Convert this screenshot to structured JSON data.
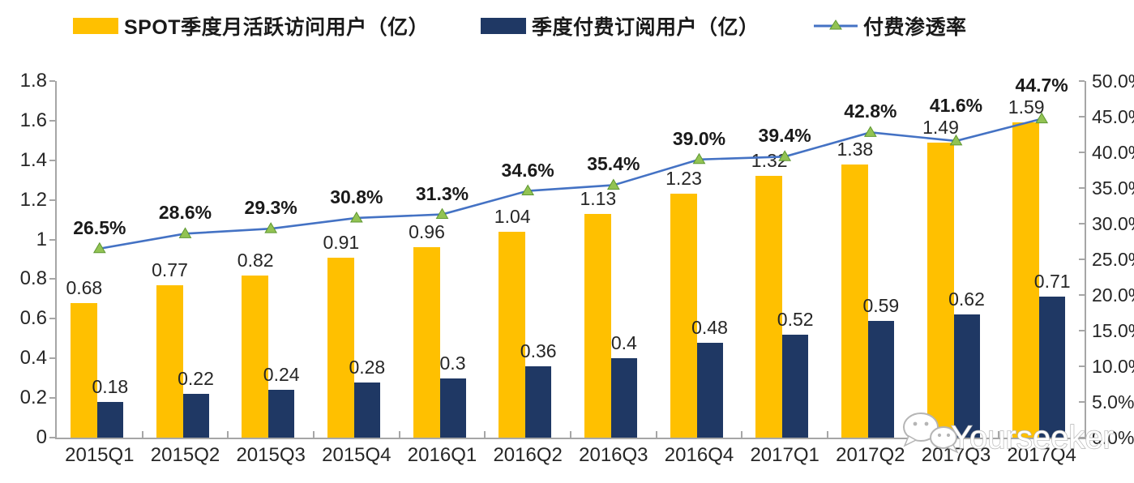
{
  "legend": [
    {
      "label": "SPOT季度月活跃访问用户（亿）",
      "color": "#FFC000",
      "type": "bar"
    },
    {
      "label": "季度付费订阅用户（亿）",
      "color": "#1F3864",
      "type": "bar"
    },
    {
      "label": "付费渗透率",
      "color": "#4472C4",
      "marker_color": "#92C353",
      "type": "line"
    }
  ],
  "chart_data": {
    "type": "bar+line combo",
    "categories": [
      "2015Q1",
      "2015Q2",
      "2015Q3",
      "2015Q4",
      "2016Q1",
      "2016Q2",
      "2016Q3",
      "2016Q4",
      "2017Q1",
      "2017Q2",
      "2017Q3",
      "2017Q4"
    ],
    "series": [
      {
        "name": "SPOT季度月活跃访问用户（亿）",
        "type": "bar",
        "axis": "left",
        "color": "#FFC000",
        "values": [
          0.68,
          0.77,
          0.82,
          0.91,
          0.96,
          1.04,
          1.13,
          1.23,
          1.32,
          1.38,
          1.49,
          1.59
        ],
        "labels": [
          "0.68",
          "0.77",
          "0.82",
          "0.91",
          "0.96",
          "1.04",
          "1.13",
          "1.23",
          "1.32",
          "1.38",
          "1.49",
          "1.59"
        ]
      },
      {
        "name": "季度付费订阅用户（亿）",
        "type": "bar",
        "axis": "left",
        "color": "#1F3864",
        "values": [
          0.18,
          0.22,
          0.24,
          0.28,
          0.3,
          0.36,
          0.4,
          0.48,
          0.52,
          0.59,
          0.62,
          0.71
        ],
        "labels": [
          "0.18",
          "0.22",
          "0.24",
          "0.28",
          "0.3",
          "0.36",
          "0.4",
          "0.48",
          "0.52",
          "0.59",
          "0.62",
          "0.71"
        ]
      },
      {
        "name": "付费渗透率",
        "type": "line",
        "axis": "right",
        "color": "#4472C4",
        "marker": "triangle",
        "marker_fill": "#92C353",
        "marker_stroke": "#5E9732",
        "values": [
          26.5,
          28.6,
          29.3,
          30.8,
          31.3,
          34.6,
          35.4,
          39.0,
          39.4,
          42.8,
          41.6,
          44.7
        ],
        "labels": [
          "26.5%",
          "28.6%",
          "29.3%",
          "30.8%",
          "31.3%",
          "34.6%",
          "35.4%",
          "39.0%",
          "39.4%",
          "42.8%",
          "41.6%",
          "44.7%"
        ]
      }
    ],
    "left_axis": {
      "min": 0,
      "max": 1.8,
      "ticks": [
        "0",
        "0.2",
        "0.4",
        "0.6",
        "0.8",
        "1",
        "1.2",
        "1.4",
        "1.6",
        "1.8"
      ]
    },
    "right_axis": {
      "min": 0,
      "max": 50,
      "ticks": [
        "0.0%",
        "5.0%",
        "10.0%",
        "15.0%",
        "20.0%",
        "25.0%",
        "30.0%",
        "35.0%",
        "40.0%",
        "45.0%",
        "50.0%"
      ]
    },
    "grid": "off",
    "legend_position": "top",
    "title": ""
  },
  "colors": {
    "axis": "#a6a6a6",
    "text": "#262626"
  },
  "watermark": {
    "text": "Yourseeker",
    "icon": "wechat-icon"
  }
}
